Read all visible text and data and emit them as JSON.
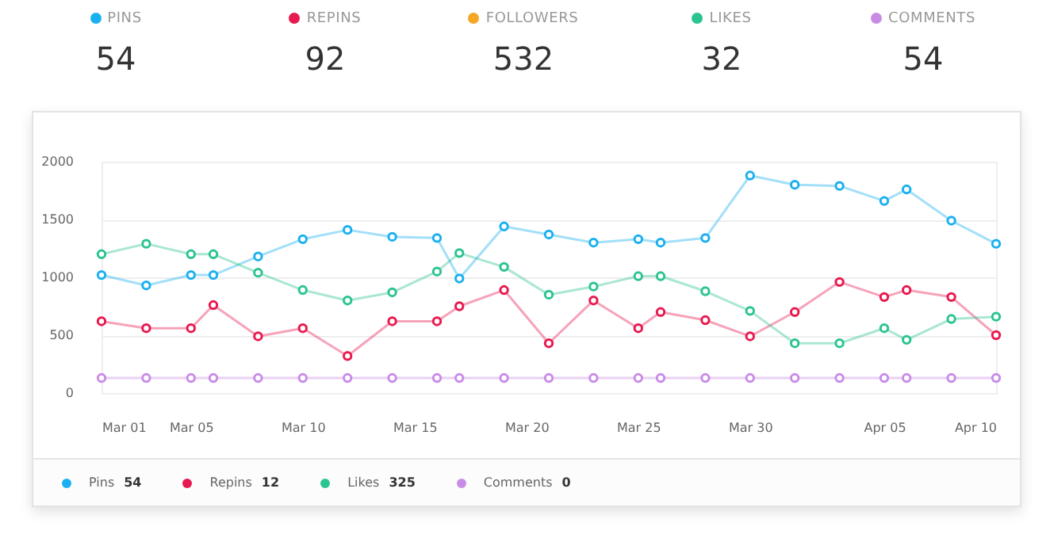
{
  "chart_data": {
    "type": "line",
    "x": [
      "--03-01",
      "--03-03",
      "--03-05",
      "--03-06",
      "--03-08",
      "--03-10",
      "--03-12",
      "--03-14",
      "--03-16",
      "--03-17",
      "--03-19",
      "--03-21",
      "--03-23",
      "--03-25",
      "--03-26",
      "--03-28",
      "--03-30",
      "--04-01",
      "--04-03",
      "--04-05",
      "--04-06",
      "--04-08",
      "--04-10"
    ],
    "xlim": [
      "--03-01",
      "--04-10"
    ],
    "xticks": [
      {
        "value": "--03-01",
        "label": "Mar 01"
      },
      {
        "value": "--03-05",
        "label": "Mar 05"
      },
      {
        "value": "--03-10",
        "label": "Mar 10"
      },
      {
        "value": "--03-15",
        "label": "Mar 15"
      },
      {
        "value": "--03-20",
        "label": "Mar 20"
      },
      {
        "value": "--03-25",
        "label": "Mar 25"
      },
      {
        "value": "--03-30",
        "label": "Mar 30"
      },
      {
        "value": "--04-05",
        "label": "Apr 05"
      },
      {
        "value": "--04-10",
        "label": "Apr 10"
      }
    ],
    "ylim": [
      0,
      2000
    ],
    "yticks": [
      0,
      500,
      1000,
      1500,
      2000
    ],
    "series": [
      {
        "name": "Pins",
        "color": "#1ab0f0",
        "values": [
          1020,
          930,
          1020,
          1020,
          1180,
          1330,
          1410,
          1350,
          1340,
          990,
          1440,
          1370,
          1300,
          1330,
          1300,
          1340,
          1880,
          1800,
          1790,
          1660,
          1760,
          1490,
          1290
        ]
      },
      {
        "name": "Repins",
        "color": "#e8194f",
        "values": [
          620,
          560,
          560,
          760,
          490,
          560,
          320,
          620,
          620,
          750,
          890,
          430,
          800,
          560,
          700,
          630,
          490,
          700,
          960,
          830,
          890,
          830,
          500
        ]
      },
      {
        "name": "Likes",
        "color": "#2bc48f",
        "values": [
          1200,
          1290,
          1200,
          1200,
          1040,
          890,
          800,
          870,
          1050,
          1210,
          1090,
          850,
          920,
          1010,
          1010,
          880,
          710,
          430,
          430,
          560,
          460,
          640,
          660
        ]
      },
      {
        "name": "Comments",
        "color": "#c98ce6",
        "values": [
          130,
          130,
          130,
          130,
          130,
          130,
          130,
          130,
          130,
          130,
          130,
          130,
          130,
          130,
          130,
          130,
          130,
          130,
          130,
          130,
          130,
          130,
          130
        ]
      }
    ],
    "annotations": [
      "PINS",
      "54",
      "REPINS",
      "92",
      "FOLLOWERS",
      "532",
      "LIKES",
      "32",
      "COMMENTS",
      "54",
      "54",
      "12",
      "325",
      "0"
    ],
    "grid": "y",
    "marker": "circle",
    "line_style": "solid",
    "legend": "bottom"
  }
}
